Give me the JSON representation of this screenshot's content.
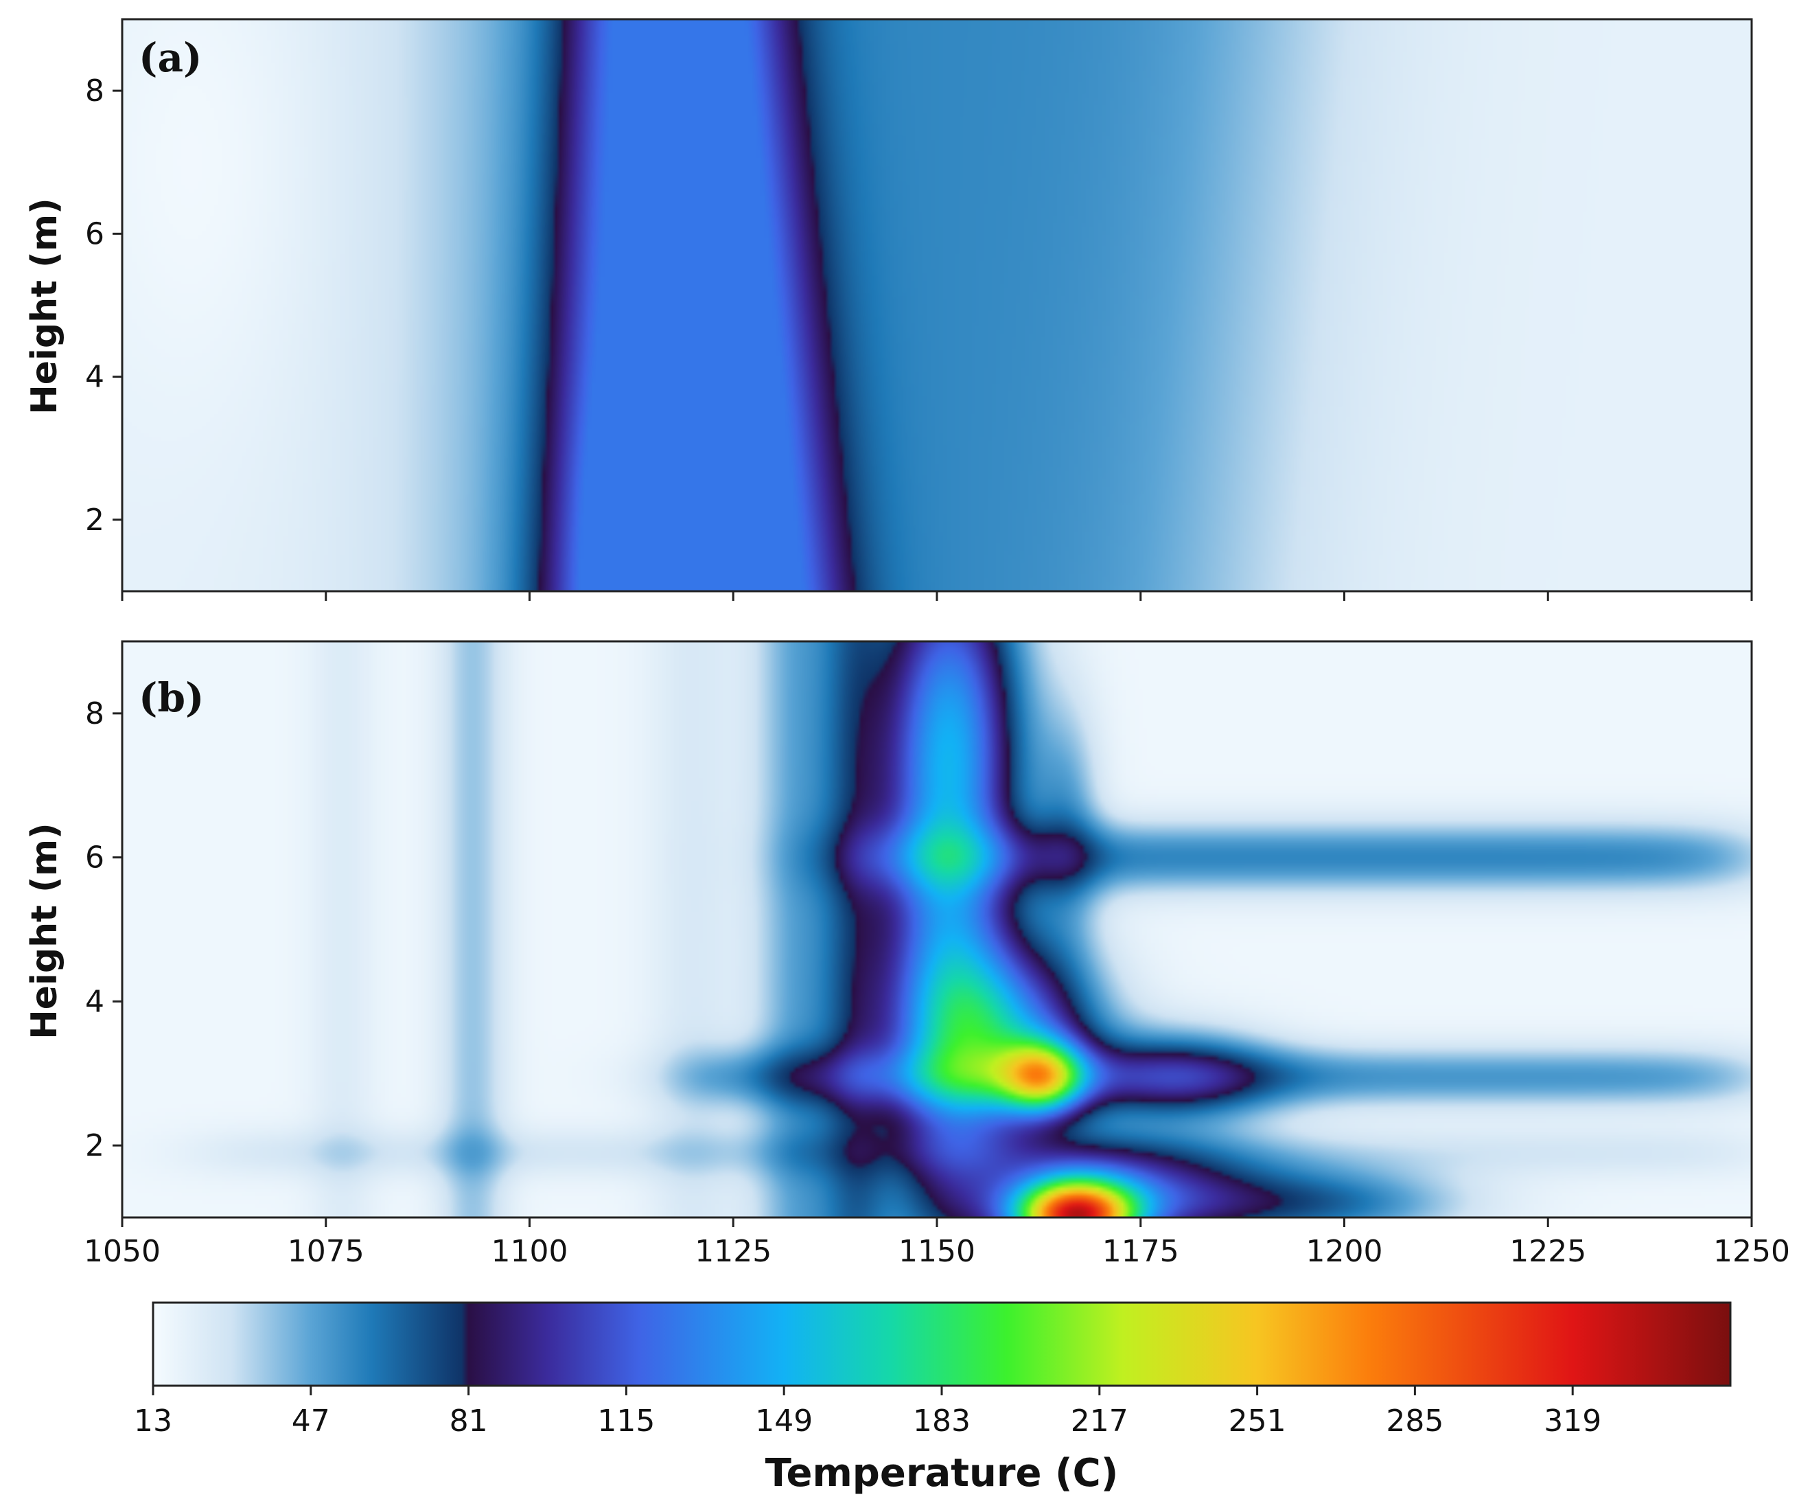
{
  "chart_data": {
    "type": "heatmap",
    "colorbar": {
      "label": "Temperature (C)",
      "range": [
        13,
        353
      ],
      "ticks": [
        13,
        47,
        81,
        115,
        149,
        183,
        217,
        251,
        285,
        319
      ],
      "tick_labels": [
        "13",
        "47",
        "81",
        "115",
        "149",
        "183",
        "217",
        "251",
        "285",
        "319"
      ],
      "colors": [
        {
          "t": 13,
          "c": "#f5fbff"
        },
        {
          "t": 30,
          "c": "#cfe3f3"
        },
        {
          "t": 47,
          "c": "#5aa4d5"
        },
        {
          "t": 60,
          "c": "#1f7ab8"
        },
        {
          "t": 79.5,
          "c": "#0f3468"
        },
        {
          "t": 81,
          "c": "#2a0f45"
        },
        {
          "t": 98,
          "c": "#3b2b9c"
        },
        {
          "t": 118,
          "c": "#3f64e6"
        },
        {
          "t": 149,
          "c": "#12b2f5"
        },
        {
          "t": 172,
          "c": "#15d8a8"
        },
        {
          "t": 197,
          "c": "#3cf12d"
        },
        {
          "t": 222,
          "c": "#c0f020"
        },
        {
          "t": 251,
          "c": "#f7c521"
        },
        {
          "t": 275,
          "c": "#fb7e0c"
        },
        {
          "t": 319,
          "c": "#e01515"
        },
        {
          "t": 353,
          "c": "#7a0f0f"
        }
      ]
    },
    "x_axis": {
      "range": [
        1050,
        1250
      ],
      "ticks": [
        1050,
        1075,
        1100,
        1125,
        1150,
        1175,
        1200,
        1225,
        1250
      ],
      "tick_labels": [
        "1050",
        "1075",
        "1100",
        "1125",
        "1150",
        "1175",
        "1200",
        "1225",
        "1250"
      ]
    },
    "panels": [
      {
        "label": "(a)",
        "ylabel": "Height (m)",
        "ylim": [
          1,
          9
        ],
        "yticks": [
          2,
          4,
          6,
          8
        ],
        "ytick_labels": [
          "2",
          "4",
          "6",
          "8"
        ],
        "field": {
          "background": 20,
          "features": [
            {
              "kind": "band",
              "x_left": [
                1092,
                1092
              ],
              "x_right": [
                1185,
                1192
              ],
              "peak": 56,
              "softness": 9
            },
            {
              "kind": "band",
              "x_left": [
                1103,
                1106
              ],
              "x_right": [
                1137,
                1130
              ],
              "peak": 112,
              "softness": 3
            },
            {
              "kind": "blob",
              "x": 1113,
              "y": 1.6,
              "sx": 6,
              "sy": 1.6,
              "amp": 14
            },
            {
              "kind": "blob",
              "x": 1060,
              "y": 7,
              "sx": 10,
              "sy": 2.5,
              "amp": -6
            }
          ]
        }
      },
      {
        "label": "(b)",
        "ylabel": "Height (m)",
        "ylim": [
          1,
          9
        ],
        "yticks": [
          2,
          4,
          6,
          8
        ],
        "ytick_labels": [
          "2",
          "4",
          "6",
          "8"
        ],
        "field": {
          "background": 16,
          "features": [
            {
              "kind": "vstreak",
              "x": 1093,
              "w": 3,
              "amp": 22
            },
            {
              "kind": "vstreak",
              "x": 1077,
              "w": 3,
              "amp": 8
            },
            {
              "kind": "vstreak",
              "x": 1120,
              "w": 4,
              "amp": 10
            },
            {
              "kind": "vstreak",
              "x": 1133,
              "w": 4,
              "amp": 30
            },
            {
              "kind": "vstreak",
              "x": 1140,
              "w": 3,
              "amp": 35
            },
            {
              "kind": "hstreak",
              "y": 6.0,
              "w": 0.35,
              "x_from": 1140,
              "x_to": 1250,
              "amp": 40
            },
            {
              "kind": "hstreak",
              "y": 2.95,
              "w": 0.3,
              "x_from": 1120,
              "x_to": 1250,
              "amp": 35
            },
            {
              "kind": "hstreak",
              "y": 1.9,
              "w": 0.25,
              "x_from": 1060,
              "x_to": 1250,
              "amp": 12
            },
            {
              "kind": "blob",
              "x": 1151,
              "y": 5.2,
              "sx": 6,
              "sy": 3.2,
              "amp": 100
            },
            {
              "kind": "blob",
              "x": 1152,
              "y": 8.0,
              "sx": 6,
              "sy": 1.6,
              "amp": 60
            },
            {
              "kind": "blob",
              "x": 1166,
              "y": 6.4,
              "sx": 3,
              "sy": 1.2,
              "amp": 30
            },
            {
              "kind": "blob",
              "x": 1158,
              "y": 3.5,
              "sx": 8,
              "sy": 0.9,
              "amp": 110
            },
            {
              "kind": "blob",
              "x": 1163,
              "y": 2.95,
              "sx": 3.5,
              "sy": 0.35,
              "amp": 130
            },
            {
              "kind": "blob",
              "x": 1180,
              "y": 2.95,
              "sx": 8,
              "sy": 0.45,
              "amp": 55
            },
            {
              "kind": "blob",
              "x": 1167,
              "y": 1.0,
              "sx": 5,
              "sy": 0.35,
              "amp": 240
            },
            {
              "kind": "blob",
              "x": 1172,
              "y": 1.3,
              "sx": 12,
              "sy": 0.5,
              "amp": 95
            },
            {
              "kind": "blob",
              "x": 1197,
              "y": 1.2,
              "sx": 12,
              "sy": 0.35,
              "amp": 45
            }
          ]
        }
      }
    ]
  }
}
